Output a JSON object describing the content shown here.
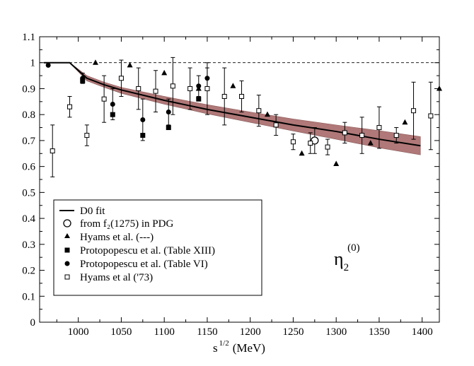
{
  "chart_data": {
    "type": "scatter",
    "title": "",
    "xlabel": "s",
    "xlabel_power": "1/2",
    "xlabel_unit": "(MeV)",
    "ylabel": "",
    "xlim": [
      955,
      1420
    ],
    "ylim": [
      0,
      1.1
    ],
    "x_ticks": [
      1000,
      1050,
      1100,
      1150,
      1200,
      1250,
      1300,
      1350,
      1400
    ],
    "y_ticks": [
      0,
      0.1,
      0.2,
      0.3,
      0.4,
      0.5,
      0.6,
      0.7,
      0.8,
      0.9,
      1,
      1.1
    ],
    "y_tick_labels": [
      "0",
      "0.1",
      "0.2",
      "0.3",
      "0.4",
      "0.5",
      "0.6",
      "0.7",
      "0.8",
      "0.9",
      "1",
      "1.1"
    ],
    "reference_line": 1.0,
    "annotation": {
      "symbol": "η",
      "sub": "2",
      "sup": "(0)"
    },
    "legend_position": "bottom-left",
    "colors": {
      "band": "#b07878",
      "band_edge": "#8c5a5a",
      "line": "#000000"
    },
    "series": [
      {
        "name": "D0 fit",
        "kind": "line",
        "x": [
          960,
          990,
          1010,
          1030,
          1050,
          1100,
          1150,
          1200,
          1250,
          1300,
          1350,
          1398
        ],
        "y": [
          1.0,
          1.0,
          0.94,
          0.915,
          0.895,
          0.855,
          0.82,
          0.79,
          0.76,
          0.735,
          0.705,
          0.68
        ],
        "band_upper": [
          1.0,
          1.0,
          0.95,
          0.925,
          0.905,
          0.87,
          0.838,
          0.81,
          0.783,
          0.76,
          0.738,
          0.715
        ],
        "band_lower": [
          1.0,
          1.0,
          0.93,
          0.905,
          0.882,
          0.84,
          0.803,
          0.77,
          0.737,
          0.705,
          0.672,
          0.645
        ]
      },
      {
        "name": "from f₂(1275)  in PDG",
        "kind": "open-circle",
        "points": [
          {
            "x": 1275,
            "y": 0.7,
            "err": 0.05
          }
        ]
      },
      {
        "name": "Hyams et al. (---)",
        "kind": "triangle",
        "points": [
          {
            "x": 1020,
            "y": 1.0
          },
          {
            "x": 1060,
            "y": 0.99
          },
          {
            "x": 1100,
            "y": 0.96
          },
          {
            "x": 1140,
            "y": 0.9
          },
          {
            "x": 1180,
            "y": 0.91
          },
          {
            "x": 1220,
            "y": 0.8
          },
          {
            "x": 1260,
            "y": 0.65
          },
          {
            "x": 1300,
            "y": 0.61
          },
          {
            "x": 1340,
            "y": 0.69
          },
          {
            "x": 1380,
            "y": 0.77
          },
          {
            "x": 1420,
            "y": 0.9
          }
        ]
      },
      {
        "name": "Protopopescu et al. (Table XIII)",
        "kind": "filled-square",
        "points": [
          {
            "x": 1005,
            "y": 0.93
          },
          {
            "x": 1040,
            "y": 0.8
          },
          {
            "x": 1075,
            "y": 0.72
          },
          {
            "x": 1105,
            "y": 0.75
          },
          {
            "x": 1140,
            "y": 0.86
          }
        ]
      },
      {
        "name": "Protopopescu et al. (Table VI)",
        "kind": "filled-circle",
        "points": [
          {
            "x": 965,
            "y": 0.99
          },
          {
            "x": 1005,
            "y": 0.94,
            "err": 0.02
          },
          {
            "x": 1040,
            "y": 0.84,
            "err": 0.06
          },
          {
            "x": 1075,
            "y": 0.78,
            "err": 0.08
          },
          {
            "x": 1105,
            "y": 0.81,
            "err": 0.05
          },
          {
            "x": 1140,
            "y": 0.91,
            "err": 0.04
          },
          {
            "x": 1150,
            "y": 0.94,
            "err": 0.04
          }
        ]
      },
      {
        "name": "Hyams et al ('73)",
        "kind": "open-square",
        "points": [
          {
            "x": 970,
            "y": 0.66,
            "err": 0.1
          },
          {
            "x": 990,
            "y": 0.83,
            "err": 0.04
          },
          {
            "x": 1010,
            "y": 0.72,
            "err": 0.04
          },
          {
            "x": 1030,
            "y": 0.86,
            "err": 0.09
          },
          {
            "x": 1050,
            "y": 0.94,
            "err": 0.07
          },
          {
            "x": 1070,
            "y": 0.9,
            "err": 0.08
          },
          {
            "x": 1090,
            "y": 0.89,
            "err": 0.08
          },
          {
            "x": 1110,
            "y": 0.91,
            "err": 0.11
          },
          {
            "x": 1130,
            "y": 0.9,
            "err": 0.08
          },
          {
            "x": 1150,
            "y": 0.9,
            "err": 0.1
          },
          {
            "x": 1170,
            "y": 0.87,
            "err": 0.11
          },
          {
            "x": 1190,
            "y": 0.87,
            "err": 0.06
          },
          {
            "x": 1210,
            "y": 0.815,
            "err": 0.06
          },
          {
            "x": 1230,
            "y": 0.76,
            "err": 0.04
          },
          {
            "x": 1250,
            "y": 0.695,
            "err": 0.03
          },
          {
            "x": 1270,
            "y": 0.69,
            "err": 0.04
          },
          {
            "x": 1290,
            "y": 0.675,
            "err": 0.03
          },
          {
            "x": 1310,
            "y": 0.73,
            "err": 0.04
          },
          {
            "x": 1330,
            "y": 0.72,
            "err": 0.07
          },
          {
            "x": 1350,
            "y": 0.75,
            "err": 0.08
          },
          {
            "x": 1370,
            "y": 0.72,
            "err": 0.03
          },
          {
            "x": 1390,
            "y": 0.815,
            "err": 0.11
          },
          {
            "x": 1410,
            "y": 0.795,
            "err": 0.13
          }
        ]
      }
    ]
  }
}
